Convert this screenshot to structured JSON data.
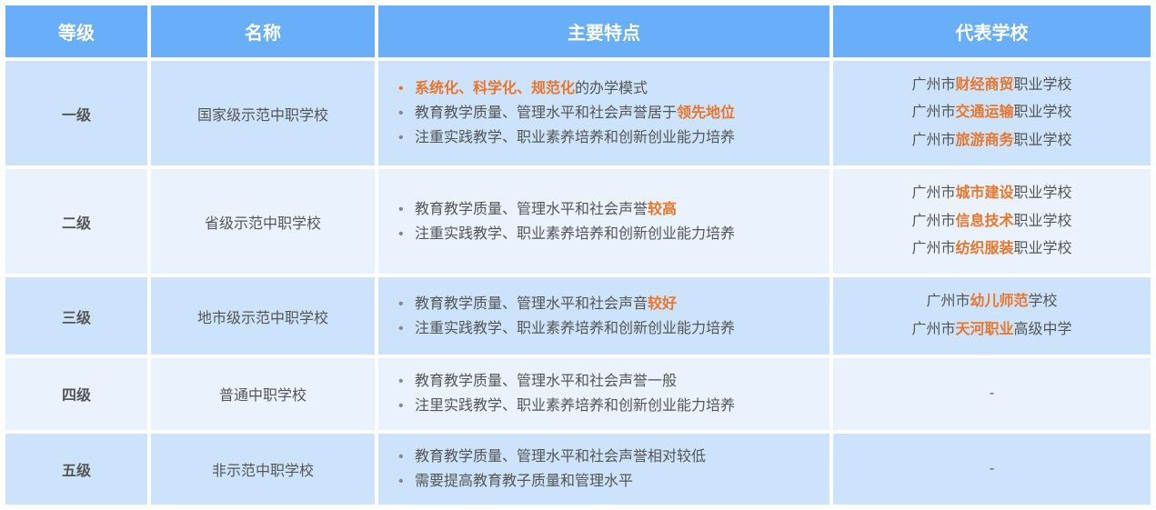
{
  "colors": {
    "header_bg": "#68aef8",
    "header_text": "#ffffff",
    "row_odd_bg": "#cce3fb",
    "row_even_bg": "#eaf3fd",
    "highlight": "#e8762d",
    "text": "#555555",
    "border": "#ffffff"
  },
  "headers": {
    "level": "等级",
    "name": "名称",
    "features": "主要特点",
    "schools": "代表学校"
  },
  "rows": [
    {
      "level": "一级",
      "name": "国家级示范中职学校",
      "features": [
        {
          "segments": [
            {
              "t": "系统化、科学化、规范化",
              "hl": true
            },
            {
              "t": "的办学模式"
            }
          ],
          "hl_bullet": true
        },
        {
          "segments": [
            {
              "t": "教育教学质量、管理水平和社会声誉居于"
            },
            {
              "t": "领先地位",
              "hl": true
            }
          ]
        },
        {
          "segments": [
            {
              "t": "注重实践教学、职业素养培养和创新创业能力培养"
            }
          ]
        }
      ],
      "schools": [
        [
          {
            "t": "广州市"
          },
          {
            "t": "财经商贸",
            "hl": true
          },
          {
            "t": "职业学校"
          }
        ],
        [
          {
            "t": "广州市"
          },
          {
            "t": "交通运输",
            "hl": true
          },
          {
            "t": "职业学校"
          }
        ],
        [
          {
            "t": "广州市"
          },
          {
            "t": "旅游商务",
            "hl": true
          },
          {
            "t": "职业学校"
          }
        ]
      ]
    },
    {
      "level": "二级",
      "name": "省级示范中职学校",
      "features": [
        {
          "segments": [
            {
              "t": "教育教学质量、管理水平和社会声誉"
            },
            {
              "t": "较高",
              "hl": true
            }
          ]
        },
        {
          "segments": [
            {
              "t": "注重实践教学、职业素养培养和创新创业能力培养"
            }
          ]
        }
      ],
      "schools": [
        [
          {
            "t": "广州市"
          },
          {
            "t": "城市建设",
            "hl": true
          },
          {
            "t": "职业学校"
          }
        ],
        [
          {
            "t": "广州市"
          },
          {
            "t": "信息技术",
            "hl": true
          },
          {
            "t": "职业学校"
          }
        ],
        [
          {
            "t": "广州市"
          },
          {
            "t": "纺织服装",
            "hl": true
          },
          {
            "t": "职业学校"
          }
        ]
      ]
    },
    {
      "level": "三级",
      "name": "地市级示范中职学校",
      "features": [
        {
          "segments": [
            {
              "t": "教育教学质量、管理水平和社会声音"
            },
            {
              "t": "较好",
              "hl": true
            }
          ]
        },
        {
          "segments": [
            {
              "t": "注重实践教学、职业素养培养和创新创业能力培养"
            }
          ]
        }
      ],
      "schools": [
        [
          {
            "t": "广州市"
          },
          {
            "t": "幼儿师范",
            "hl": true
          },
          {
            "t": "学校"
          }
        ],
        [
          {
            "t": "广州市"
          },
          {
            "t": "天河职业",
            "hl": true
          },
          {
            "t": "高级中学"
          }
        ]
      ]
    },
    {
      "level": "四级",
      "name": "普通中职学校",
      "features": [
        {
          "segments": [
            {
              "t": "教育教学质量、管理水平和社会声誉一般"
            }
          ]
        },
        {
          "segments": [
            {
              "t": "注里实践教学、职业素养培养和创新创业能力培养"
            }
          ]
        }
      ],
      "schools": "-"
    },
    {
      "level": "五级",
      "name": "非示范中职学校",
      "features": [
        {
          "segments": [
            {
              "t": "教育教学质量、管理水平和社会声誉相对较低"
            }
          ]
        },
        {
          "segments": [
            {
              "t": "需要提高教育教子质量和管理水平"
            }
          ]
        }
      ],
      "schools": "-"
    }
  ]
}
